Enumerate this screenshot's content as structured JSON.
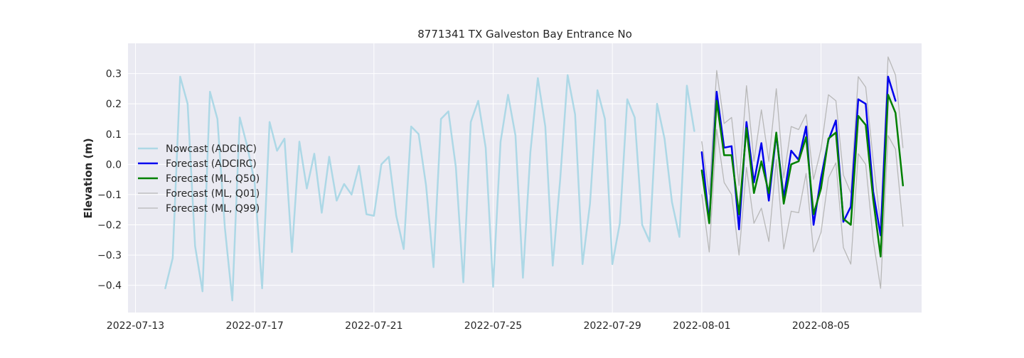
{
  "chart_data": {
    "type": "line",
    "title": "8771341 TX Galveston Bay Entrance No",
    "xlabel": "",
    "ylabel": "Elevation (m)",
    "xlim": [
      "2022-07-12T18:00",
      "2022-08-08T09:00"
    ],
    "ylim": [
      -0.49,
      0.4
    ],
    "grid": true,
    "background": "#eaeaf2",
    "legend_position": "center-left",
    "x_ticks": [
      {
        "date": "2022-07-13",
        "label": "2022-07-13"
      },
      {
        "date": "2022-07-17",
        "label": "2022-07-17"
      },
      {
        "date": "2022-07-21",
        "label": "2022-07-21"
      },
      {
        "date": "2022-07-25",
        "label": "2022-07-25"
      },
      {
        "date": "2022-07-29",
        "label": "2022-07-29"
      },
      {
        "date": "2022-08-01",
        "label": "2022-08-01"
      },
      {
        "date": "2022-08-05",
        "label": "2022-08-05"
      }
    ],
    "y_ticks": [
      {
        "value": -0.4,
        "label": "−0.4"
      },
      {
        "value": -0.3,
        "label": "−0.3"
      },
      {
        "value": -0.2,
        "label": "−0.2"
      },
      {
        "value": -0.1,
        "label": "−0.1"
      },
      {
        "value": 0.0,
        "label": "0.0"
      },
      {
        "value": 0.1,
        "label": "0.1"
      },
      {
        "value": 0.2,
        "label": "0.2"
      },
      {
        "value": 0.3,
        "label": "0.3"
      }
    ],
    "series": [
      {
        "name": "Nowcast (ADCIRC)",
        "color": "#add8e6",
        "width": 2.5,
        "start": "2022-07-14T00:00",
        "step_hours": 6,
        "values": [
          -0.41,
          -0.31,
          0.29,
          0.2,
          -0.27,
          -0.42,
          0.24,
          0.15,
          -0.21,
          -0.45,
          0.155,
          0.06,
          -0.06,
          -0.41,
          0.14,
          0.045,
          0.085,
          -0.29,
          0.075,
          -0.08,
          0.035,
          -0.16,
          0.025,
          -0.12,
          -0.065,
          -0.1,
          -0.005,
          -0.165,
          -0.17,
          0.0,
          0.025,
          -0.17,
          -0.28,
          0.125,
          0.1,
          -0.07,
          -0.34,
          0.15,
          0.175,
          -0.01,
          -0.39,
          0.14,
          0.21,
          0.055,
          -0.405,
          0.075,
          0.23,
          0.095,
          -0.375,
          0.04,
          0.285,
          0.125,
          -0.335,
          -0.05,
          0.295,
          0.165,
          -0.33,
          -0.13,
          0.245,
          0.15,
          -0.33,
          -0.195,
          0.215,
          0.155,
          -0.2,
          -0.255,
          0.2,
          0.085,
          -0.125,
          -0.24,
          0.26,
          0.11
        ]
      },
      {
        "name": "Forecast (ADCIRC)",
        "color": "#0000ee",
        "width": 2.5,
        "start": "2022-08-01T00:00",
        "step_hours": 6,
        "values": [
          0.04,
          -0.19,
          0.24,
          0.055,
          0.06,
          -0.215,
          0.14,
          -0.06,
          0.07,
          -0.12,
          0.1,
          -0.11,
          0.045,
          0.015,
          0.125,
          -0.2,
          -0.045,
          0.08,
          0.145,
          -0.19,
          -0.14,
          0.215,
          0.2,
          -0.09,
          -0.235,
          0.29,
          0.21
        ]
      },
      {
        "name": "Forecast (ML, Q50)",
        "color": "#008000",
        "width": 2.5,
        "start": "2022-08-01T00:00",
        "step_hours": 6,
        "values": [
          -0.02,
          -0.195,
          0.21,
          0.03,
          0.03,
          -0.165,
          0.12,
          -0.095,
          0.01,
          -0.095,
          0.105,
          -0.13,
          0.0,
          0.01,
          0.09,
          -0.165,
          -0.08,
          0.085,
          0.105,
          -0.18,
          -0.2,
          0.16,
          0.13,
          -0.115,
          -0.305,
          0.23,
          0.17,
          -0.07
        ]
      },
      {
        "name": "Forecast (ML, Q01)",
        "color": "#b8b8b8",
        "width": 1.3,
        "start": "2022-08-01T00:00",
        "step_hours": 6,
        "values": [
          -0.1,
          -0.29,
          0.115,
          -0.06,
          -0.1,
          -0.3,
          -0.01,
          -0.195,
          -0.145,
          -0.255,
          0.015,
          -0.28,
          -0.155,
          -0.16,
          -0.03,
          -0.29,
          -0.225,
          -0.045,
          0.005,
          -0.275,
          -0.33,
          0.035,
          0.0,
          -0.25,
          -0.41,
          0.095,
          0.05,
          -0.205
        ]
      },
      {
        "name": "Forecast (ML, Q99)",
        "color": "#b8b8b8",
        "width": 1.3,
        "start": "2022-08-01T00:00",
        "step_hours": 6,
        "values": [
          0.075,
          -0.1,
          0.31,
          0.135,
          0.155,
          -0.07,
          0.26,
          0.01,
          0.18,
          0.01,
          0.25,
          -0.045,
          0.125,
          0.115,
          0.165,
          -0.05,
          0.05,
          0.23,
          0.21,
          -0.035,
          -0.095,
          0.29,
          0.255,
          0.015,
          -0.2,
          0.355,
          0.295,
          0.055
        ]
      }
    ]
  }
}
